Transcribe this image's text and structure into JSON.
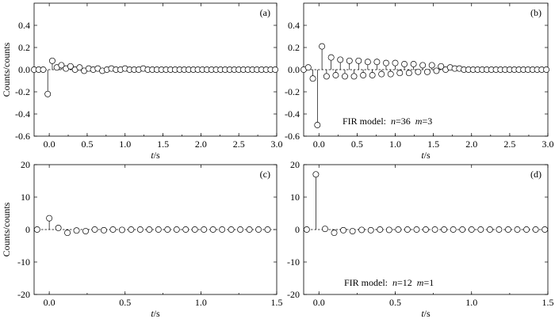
{
  "chart_data": [
    {
      "type": "stem",
      "panel_label": "(a)",
      "ylabel": "Counts/counts",
      "xlabel": "t/s",
      "xlim": [
        -0.2,
        3.0
      ],
      "ylim": [
        -0.6,
        0.6
      ],
      "xticks": [
        0.0,
        0.5,
        1.0,
        1.5,
        2.0,
        2.5,
        3.0
      ],
      "xtick_labels": [
        "0.0",
        "0.5",
        "1.0",
        "1.5",
        "2.0",
        "2.5",
        "3.0"
      ],
      "yticks": [
        -0.6,
        -0.4,
        -0.2,
        0.0,
        0.2,
        0.4
      ],
      "ytick_labels": [
        "-0.6",
        "-0.4",
        "-0.2",
        "0.0",
        "0.2",
        "0.4"
      ],
      "annotation": "",
      "x": [
        -0.2,
        -0.14,
        -0.08,
        -0.02,
        0.04,
        0.1,
        0.16,
        0.22,
        0.28,
        0.34,
        0.4,
        0.46,
        0.52,
        0.58,
        0.64,
        0.7,
        0.76,
        0.82,
        0.88,
        0.94,
        1.0,
        1.06,
        1.12,
        1.18,
        1.24,
        1.3,
        1.36,
        1.42,
        1.48,
        1.54,
        1.6,
        1.66,
        1.72,
        1.78,
        1.84,
        1.9,
        1.96,
        2.02,
        2.08,
        2.14,
        2.2,
        2.26,
        2.32,
        2.38,
        2.44,
        2.5,
        2.56,
        2.62,
        2.68,
        2.74,
        2.8,
        2.86,
        2.92,
        2.98
      ],
      "y": [
        0.0,
        0.0,
        0.0,
        -0.22,
        0.08,
        0.02,
        0.04,
        0.01,
        0.03,
        0.0,
        0.02,
        -0.01,
        0.01,
        0.0,
        0.01,
        -0.01,
        0.0,
        0.01,
        0.0,
        0.0,
        0.01,
        0.0,
        0.0,
        0.0,
        0.01,
        0.0,
        0.0,
        0.0,
        0.0,
        0.0,
        0.0,
        0.0,
        0.0,
        0.0,
        0.0,
        0.0,
        0.0,
        0.0,
        0.0,
        0.0,
        0.0,
        0.0,
        0.0,
        0.0,
        0.0,
        0.0,
        0.0,
        0.0,
        0.0,
        0.0,
        0.0,
        0.0,
        0.0,
        0.0
      ]
    },
    {
      "type": "stem",
      "panel_label": "(b)",
      "ylabel": "",
      "xlabel": "t/s",
      "xlim": [
        -0.2,
        3.0
      ],
      "ylim": [
        -0.6,
        0.6
      ],
      "xticks": [
        0.0,
        0.5,
        1.0,
        1.5,
        2.0,
        2.5,
        3.0
      ],
      "xtick_labels": [
        "0.0",
        "0.5",
        "1.0",
        "1.5",
        "2.0",
        "2.5",
        "3.0"
      ],
      "yticks": [
        -0.6,
        -0.4,
        -0.2,
        0.0,
        0.2,
        0.4
      ],
      "ytick_labels": [
        "-0.6",
        "-0.4",
        "-0.2",
        "0.0",
        "0.2",
        "0.4"
      ],
      "annotation": "FIR model:  n=36  m=3",
      "x": [
        -0.2,
        -0.14,
        -0.08,
        -0.02,
        0.04,
        0.1,
        0.16,
        0.22,
        0.28,
        0.34,
        0.4,
        0.46,
        0.52,
        0.58,
        0.64,
        0.7,
        0.76,
        0.82,
        0.88,
        0.94,
        1.0,
        1.06,
        1.12,
        1.18,
        1.24,
        1.3,
        1.36,
        1.42,
        1.48,
        1.54,
        1.6,
        1.66,
        1.72,
        1.78,
        1.84,
        1.9,
        1.96,
        2.02,
        2.08,
        2.14,
        2.2,
        2.26,
        2.32,
        2.38,
        2.44,
        2.5,
        2.56,
        2.62,
        2.68,
        2.74,
        2.8,
        2.86,
        2.92,
        2.98
      ],
      "y": [
        0.0,
        0.02,
        -0.08,
        -0.5,
        0.21,
        -0.06,
        0.11,
        -0.05,
        0.09,
        -0.06,
        0.08,
        -0.06,
        0.08,
        -0.05,
        0.07,
        -0.05,
        0.07,
        -0.04,
        0.06,
        -0.04,
        0.06,
        -0.03,
        0.05,
        -0.03,
        0.05,
        -0.02,
        0.04,
        -0.02,
        0.04,
        -0.01,
        0.03,
        0.0,
        0.02,
        0.01,
        0.01,
        0.0,
        0.0,
        0.0,
        0.0,
        0.0,
        0.0,
        0.0,
        0.0,
        0.0,
        0.0,
        0.0,
        0.0,
        0.0,
        0.0,
        0.0,
        0.0,
        0.0,
        0.0,
        0.0
      ]
    },
    {
      "type": "stem",
      "panel_label": "(c)",
      "ylabel": "Counts/counts",
      "xlabel": "t/s",
      "xlim": [
        -0.1,
        1.5
      ],
      "ylim": [
        -20,
        20
      ],
      "xticks": [
        0.0,
        0.5,
        1.0,
        1.5
      ],
      "xtick_labels": [
        "0.0",
        "0.5",
        "1.0",
        "1.5"
      ],
      "yticks": [
        -20,
        -10,
        0,
        10,
        20
      ],
      "ytick_labels": [
        "-20",
        "-10",
        "0",
        "10",
        "20"
      ],
      "annotation": "",
      "x": [
        -0.08,
        0.0,
        0.06,
        0.12,
        0.18,
        0.24,
        0.3,
        0.36,
        0.42,
        0.48,
        0.54,
        0.6,
        0.66,
        0.72,
        0.78,
        0.84,
        0.9,
        0.96,
        1.02,
        1.08,
        1.14,
        1.2,
        1.26,
        1.32,
        1.38,
        1.44
      ],
      "y": [
        0.0,
        3.5,
        0.5,
        -1.0,
        -0.3,
        -0.5,
        0.0,
        -0.2,
        0.0,
        -0.1,
        0.0,
        0.0,
        0.0,
        0.0,
        0.0,
        0.0,
        0.0,
        0.0,
        0.0,
        0.0,
        0.0,
        0.0,
        0.0,
        0.0,
        0.0,
        0.0
      ]
    },
    {
      "type": "stem",
      "panel_label": "(d)",
      "ylabel": "",
      "xlabel": "t/s",
      "xlim": [
        -0.1,
        1.5
      ],
      "ylim": [
        -20,
        20
      ],
      "xticks": [
        0.0,
        0.5,
        1.0,
        1.5
      ],
      "xtick_labels": [
        "0.0",
        "0.5",
        "1.0",
        "1.5"
      ],
      "yticks": [
        -20,
        -10,
        0,
        10,
        20
      ],
      "ytick_labels": [
        "-20",
        "-10",
        "0",
        "10",
        "20"
      ],
      "annotation": "FIR model:  n=12  m=1",
      "x": [
        -0.08,
        -0.02,
        0.04,
        0.1,
        0.16,
        0.22,
        0.28,
        0.34,
        0.4,
        0.46,
        0.52,
        0.58,
        0.64,
        0.7,
        0.76,
        0.82,
        0.88,
        0.94,
        1.0,
        1.06,
        1.12,
        1.18,
        1.24,
        1.3,
        1.36,
        1.42,
        1.48
      ],
      "y": [
        0.0,
        17.0,
        0.2,
        -1.0,
        -0.2,
        -0.5,
        -0.1,
        -0.2,
        0.0,
        -0.1,
        0.0,
        0.0,
        0.0,
        0.0,
        0.0,
        0.0,
        0.0,
        0.0,
        0.0,
        0.0,
        0.0,
        0.0,
        0.0,
        0.0,
        0.0,
        0.0,
        0.0
      ]
    }
  ]
}
